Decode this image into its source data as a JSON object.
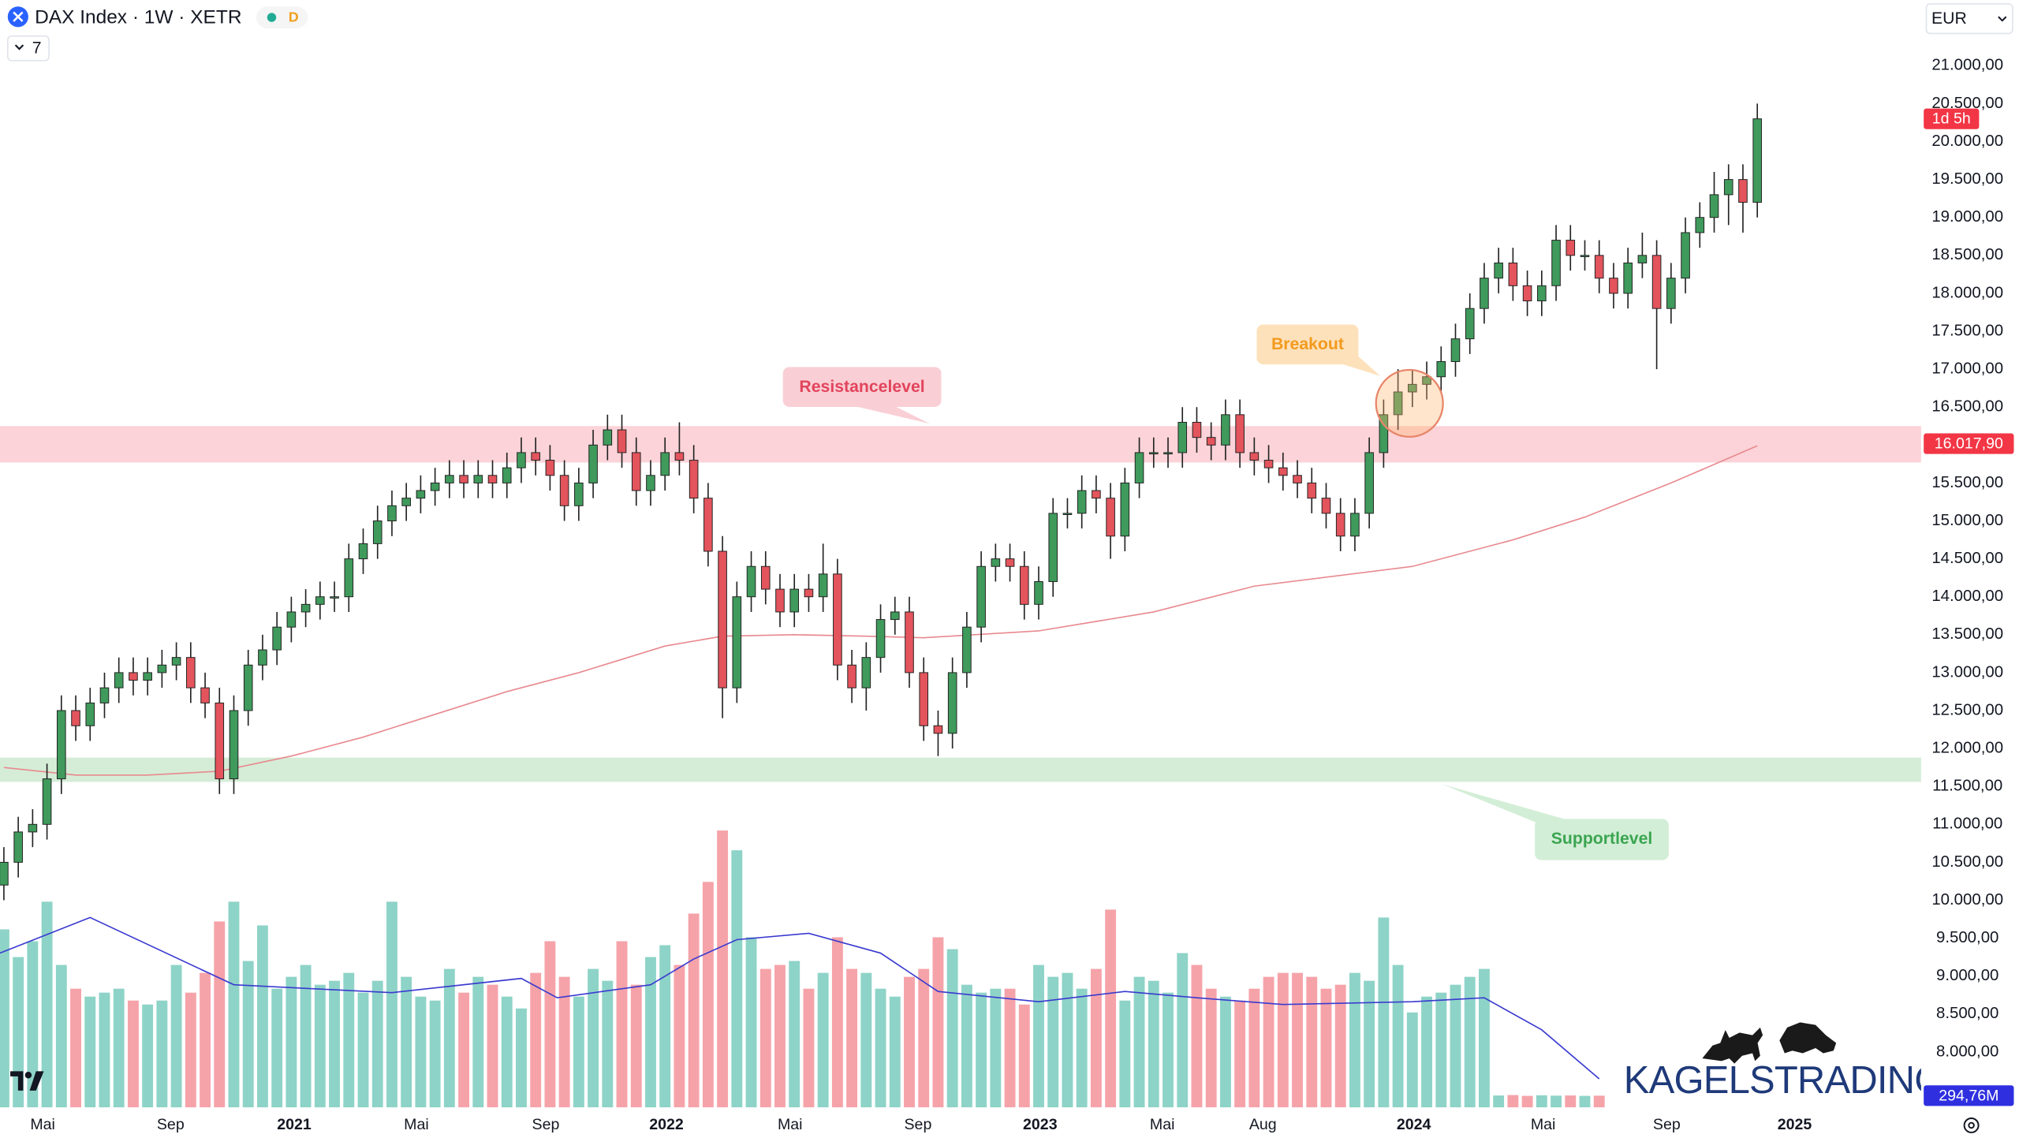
{
  "chart_data": {
    "type": "candlestick",
    "title": "DAX Index · 1W · XETR",
    "badge": "D",
    "indicator_count": 7,
    "currency": "EUR",
    "countdown": "1d 5h",
    "logo": "KAGELSTRADING",
    "annotations": {
      "resistance": "Resistancelevel",
      "breakout": "Breakout",
      "support": "Supportlevel"
    },
    "grid": false,
    "colors": {
      "up": "#3f9a5c",
      "down": "#e3545c",
      "wick": "#222222",
      "tag": "#f23645"
    },
    "ylim": [
      7270,
      21866
    ],
    "yticks": [
      {
        "value": 8000,
        "label": "8.000,00"
      },
      {
        "value": 8500,
        "label": "8.500,00"
      },
      {
        "value": 9000,
        "label": "9.000,00"
      },
      {
        "value": 9500,
        "label": "9.500,00"
      },
      {
        "value": 10000,
        "label": "10.000,00"
      },
      {
        "value": 10500,
        "label": "10.500,00"
      },
      {
        "value": 11000,
        "label": "11.000,00"
      },
      {
        "value": 11500,
        "label": "11.500,00"
      },
      {
        "value": 12000,
        "label": "12.000,00"
      },
      {
        "value": 12500,
        "label": "12.500,00"
      },
      {
        "value": 13000,
        "label": "13.000,00"
      },
      {
        "value": 13500,
        "label": "13.500,00"
      },
      {
        "value": 14000,
        "label": "14.000,00"
      },
      {
        "value": 14500,
        "label": "14.500,00"
      },
      {
        "value": 15000,
        "label": "15.000,00"
      },
      {
        "value": 15500,
        "label": "15.500,00"
      },
      {
        "value": 16500,
        "label": "16.500,00"
      },
      {
        "value": 17000,
        "label": "17.000,00"
      },
      {
        "value": 17500,
        "label": "17.500,00"
      },
      {
        "value": 18000,
        "label": "18.000,00"
      },
      {
        "value": 18500,
        "label": "18.500,00"
      },
      {
        "value": 19000,
        "label": "19.000,00"
      },
      {
        "value": 19500,
        "label": "19.500,00"
      },
      {
        "value": 20000,
        "label": "20.000,00"
      },
      {
        "value": 20500,
        "label": "20.500,00"
      },
      {
        "value": 21000,
        "label": "21.000,00"
      }
    ],
    "xlim": [
      -0.27,
      133.4
    ],
    "xticks": [
      {
        "value": 2.7,
        "label": "Mai"
      },
      {
        "value": 11.6,
        "label": "Sep"
      },
      {
        "value": 20.2,
        "label": "2021"
      },
      {
        "value": 28.7,
        "label": "Mai"
      },
      {
        "value": 37.7,
        "label": "Sep"
      },
      {
        "value": 46.1,
        "label": "2022"
      },
      {
        "value": 54.7,
        "label": "Mai"
      },
      {
        "value": 63.6,
        "label": "Sep"
      },
      {
        "value": 72.1,
        "label": "2023"
      },
      {
        "value": 80.6,
        "label": "Mai"
      },
      {
        "value": 87.6,
        "label": "Aug"
      },
      {
        "value": 98.1,
        "label": "2024"
      },
      {
        "value": 107.1,
        "label": "Mai"
      },
      {
        "value": 115.7,
        "label": "Sep"
      },
      {
        "value": 124.6,
        "label": "2025"
      }
    ],
    "open": [
      10200,
      10500,
      10900,
      11000,
      11600,
      12500,
      12300,
      12600,
      12800,
      13000,
      12900,
      13000,
      13100,
      13200,
      12800,
      12600,
      11600,
      12500,
      13100,
      13300,
      13600,
      13800,
      13900,
      14000,
      14000,
      14500,
      14700,
      15000,
      15200,
      15300,
      15400,
      15500,
      15600,
      15500,
      15600,
      15500,
      15700,
      15900,
      15800,
      15600,
      15200,
      15500,
      16000,
      16200,
      15900,
      15400,
      15600,
      15900,
      15800,
      15300,
      14600,
      12800,
      14000,
      14400,
      14100,
      13800,
      14100,
      14000,
      14300,
      13100,
      12800,
      13200,
      13700,
      13800,
      13000,
      12300,
      12200,
      13000,
      13600,
      14400,
      14500,
      14400,
      13900,
      14200,
      15100,
      15100,
      15400,
      15300,
      14800,
      15500,
      15900,
      15900,
      15900,
      16300,
      16100,
      16000,
      16400,
      15900,
      15800,
      15700,
      15600,
      15500,
      15300,
      15100,
      14800,
      15100,
      15900,
      16400,
      16700,
      16800,
      16900,
      17100,
      17400,
      17800,
      18200,
      18400,
      18100,
      17900,
      18100,
      18700,
      18500,
      18500,
      18200,
      18000,
      18400,
      18500,
      17800,
      18200,
      18800,
      19000,
      19300,
      19500,
      19200
    ],
    "high": [
      10700,
      11100,
      11200,
      11800,
      12700,
      12700,
      12800,
      13000,
      13200,
      13200,
      13200,
      13300,
      13400,
      13400,
      13000,
      12800,
      12700,
      13300,
      13500,
      13800,
      14000,
      14100,
      14200,
      14200,
      14700,
      14900,
      15200,
      15400,
      15500,
      15600,
      15700,
      15800,
      15800,
      15800,
      15800,
      15900,
      16100,
      16100,
      16000,
      15800,
      15700,
      16200,
      16400,
      16400,
      16100,
      15800,
      16100,
      16300,
      16000,
      15500,
      14800,
      14200,
      14600,
      14600,
      14300,
      14300,
      14300,
      14700,
      14500,
      13300,
      13400,
      13900,
      14000,
      14000,
      13200,
      12500,
      13200,
      13800,
      14600,
      14700,
      14700,
      14600,
      14400,
      15300,
      15300,
      15600,
      15600,
      15500,
      15700,
      16100,
      16100,
      16100,
      16500,
      16500,
      16300,
      16600,
      16600,
      16100,
      16000,
      15900,
      15800,
      15700,
      15500,
      15300,
      15300,
      16100,
      16600,
      17000,
      17000,
      17100,
      17300,
      17600,
      18000,
      18400,
      18600,
      18600,
      18300,
      18300,
      18900,
      18900,
      18700,
      18700,
      18400,
      18600,
      18800,
      18700,
      18400,
      19000,
      19200,
      19600,
      19700,
      19700,
      20500
    ],
    "low": [
      10000,
      10300,
      10700,
      10800,
      11400,
      12100,
      12100,
      12400,
      12600,
      12700,
      12700,
      12800,
      12900,
      12600,
      12400,
      11400,
      11400,
      12300,
      12900,
      13100,
      13400,
      13600,
      13700,
      13800,
      13800,
      14300,
      14500,
      14800,
      15000,
      15100,
      15200,
      15300,
      15300,
      15300,
      15300,
      15300,
      15500,
      15600,
      15400,
      15000,
      15000,
      15300,
      15800,
      15700,
      15200,
      15200,
      15400,
      15600,
      15100,
      14400,
      12400,
      12600,
      13800,
      13900,
      13600,
      13600,
      13800,
      13800,
      12900,
      12600,
      12500,
      13000,
      13500,
      12800,
      12100,
      11900,
      12000,
      12800,
      13400,
      14200,
      14200,
      13700,
      13700,
      14000,
      14900,
      14900,
      15100,
      14500,
      14600,
      15300,
      15700,
      15700,
      15700,
      15900,
      15800,
      15800,
      15700,
      15600,
      15500,
      15400,
      15300,
      15100,
      14900,
      14600,
      14600,
      14900,
      15700,
      16200,
      16500,
      16600,
      16700,
      16900,
      17200,
      17600,
      18000,
      17900,
      17700,
      17700,
      17900,
      18300,
      18300,
      18000,
      17800,
      17800,
      18200,
      17000,
      17600,
      18000,
      18600,
      18800,
      18900,
      18800,
      19000
    ],
    "close": [
      10500,
      10900,
      11000,
      11600,
      12500,
      12300,
      12600,
      12800,
      13000,
      12900,
      13000,
      13100,
      13200,
      12800,
      12600,
      11600,
      12500,
      13100,
      13300,
      13600,
      13800,
      13900,
      14000,
      14000,
      14500,
      14700,
      15000,
      15200,
      15300,
      15400,
      15500,
      15600,
      15500,
      15600,
      15500,
      15700,
      15900,
      15800,
      15600,
      15200,
      15500,
      16000,
      16200,
      15900,
      15400,
      15600,
      15900,
      15800,
      15300,
      14600,
      12800,
      14000,
      14400,
      14100,
      13800,
      14100,
      14000,
      14300,
      13100,
      12800,
      13200,
      13700,
      13800,
      13000,
      12300,
      12200,
      13000,
      13600,
      14400,
      14500,
      14400,
      13900,
      14200,
      15100,
      15100,
      15400,
      15300,
      14800,
      15500,
      15900,
      15900,
      15900,
      16300,
      16100,
      16000,
      16400,
      15900,
      15800,
      15700,
      15600,
      15500,
      15300,
      15100,
      14800,
      15100,
      15900,
      16400,
      16700,
      16800,
      16900,
      17100,
      17400,
      17800,
      18200,
      18400,
      18100,
      17900,
      18100,
      18700,
      18500,
      18500,
      18200,
      18000,
      18400,
      18500,
      17800,
      18200,
      18800,
      19000,
      19300,
      19500,
      19200,
      20300
    ],
    "volume": {
      "lim": [
        0,
        28000
      ],
      "up_color": "#8ed3c7",
      "down_color": "#f5a3a9",
      "values": [
        4500,
        3800,
        4200,
        5200,
        3600,
        3000,
        2800,
        2900,
        3000,
        2700,
        2600,
        2700,
        3600,
        2900,
        3400,
        4700,
        5200,
        3700,
        4600,
        3000,
        3300,
        3600,
        3100,
        3200,
        3400,
        2900,
        3200,
        5200,
        3300,
        2800,
        2700,
        3500,
        2900,
        3300,
        3100,
        2800,
        2500,
        3400,
        4200,
        3300,
        2800,
        3500,
        3200,
        4200,
        3100,
        3800,
        4100,
        3600,
        4900,
        5700,
        7000,
        6500,
        4300,
        3500,
        3600,
        3700,
        3000,
        3400,
        4300,
        3500,
        3400,
        3000,
        2800,
        3300,
        3500,
        4300,
        4000,
        3100,
        2900,
        3000,
        3000,
        2600,
        3600,
        3300,
        3400,
        3000,
        3500,
        5000,
        2700,
        3300,
        3200,
        2900,
        3900,
        3600,
        3000,
        2800,
        2700,
        3000,
        3300,
        3400,
        3400,
        3300,
        3000,
        3100,
        3400,
        3200,
        4800,
        3600,
        2400,
        2800,
        2900,
        3100,
        3300,
        3500,
        300,
        310,
        290,
        305,
        295,
        300,
        290,
        294.76,
        null,
        null,
        null,
        null,
        null,
        null,
        null,
        null,
        null,
        null,
        null
      ],
      "tag": {
        "value": 294.76,
        "label": "294,76M",
        "color": "#2f2fe0"
      }
    },
    "ma": {
      "color": "#e8898f",
      "x": [
        0,
        5,
        10,
        15,
        20,
        25,
        30,
        35,
        40,
        46,
        50,
        55,
        60,
        64,
        72,
        80,
        87,
        98,
        105,
        110,
        116,
        122
      ],
      "values": [
        11750,
        11650,
        11650,
        11700,
        11900,
        12150,
        12450,
        12750,
        13000,
        13350,
        13480,
        13500,
        13480,
        13460,
        13550,
        13800,
        14140,
        14400,
        14750,
        15050,
        15500,
        15990
      ]
    },
    "volume_ma": {
      "color": "#3a3ad0",
      "x": [
        -0.27,
        6,
        16,
        27,
        36,
        38.5,
        45,
        48,
        51,
        56,
        61,
        65,
        72,
        78,
        83,
        89,
        98,
        103,
        107,
        111
      ],
      "values": [
        3900,
        4800,
        3100,
        2900,
        3260,
        2770,
        3100,
        3750,
        4240,
        4400,
        3900,
        2930,
        2670,
        2930,
        2770,
        2600,
        2670,
        2770,
        1960,
        720
      ]
    },
    "zones": [
      {
        "range": [
          15770,
          16250
        ],
        "color": "#fbd3d8"
      },
      {
        "range": [
          11560,
          11880
        ],
        "color": "#d5edd7"
      }
    ],
    "level": {
      "value": 16017.9,
      "label": "16.017,90"
    },
    "breakout_point": {
      "x": 97.8,
      "y": 16550
    }
  }
}
